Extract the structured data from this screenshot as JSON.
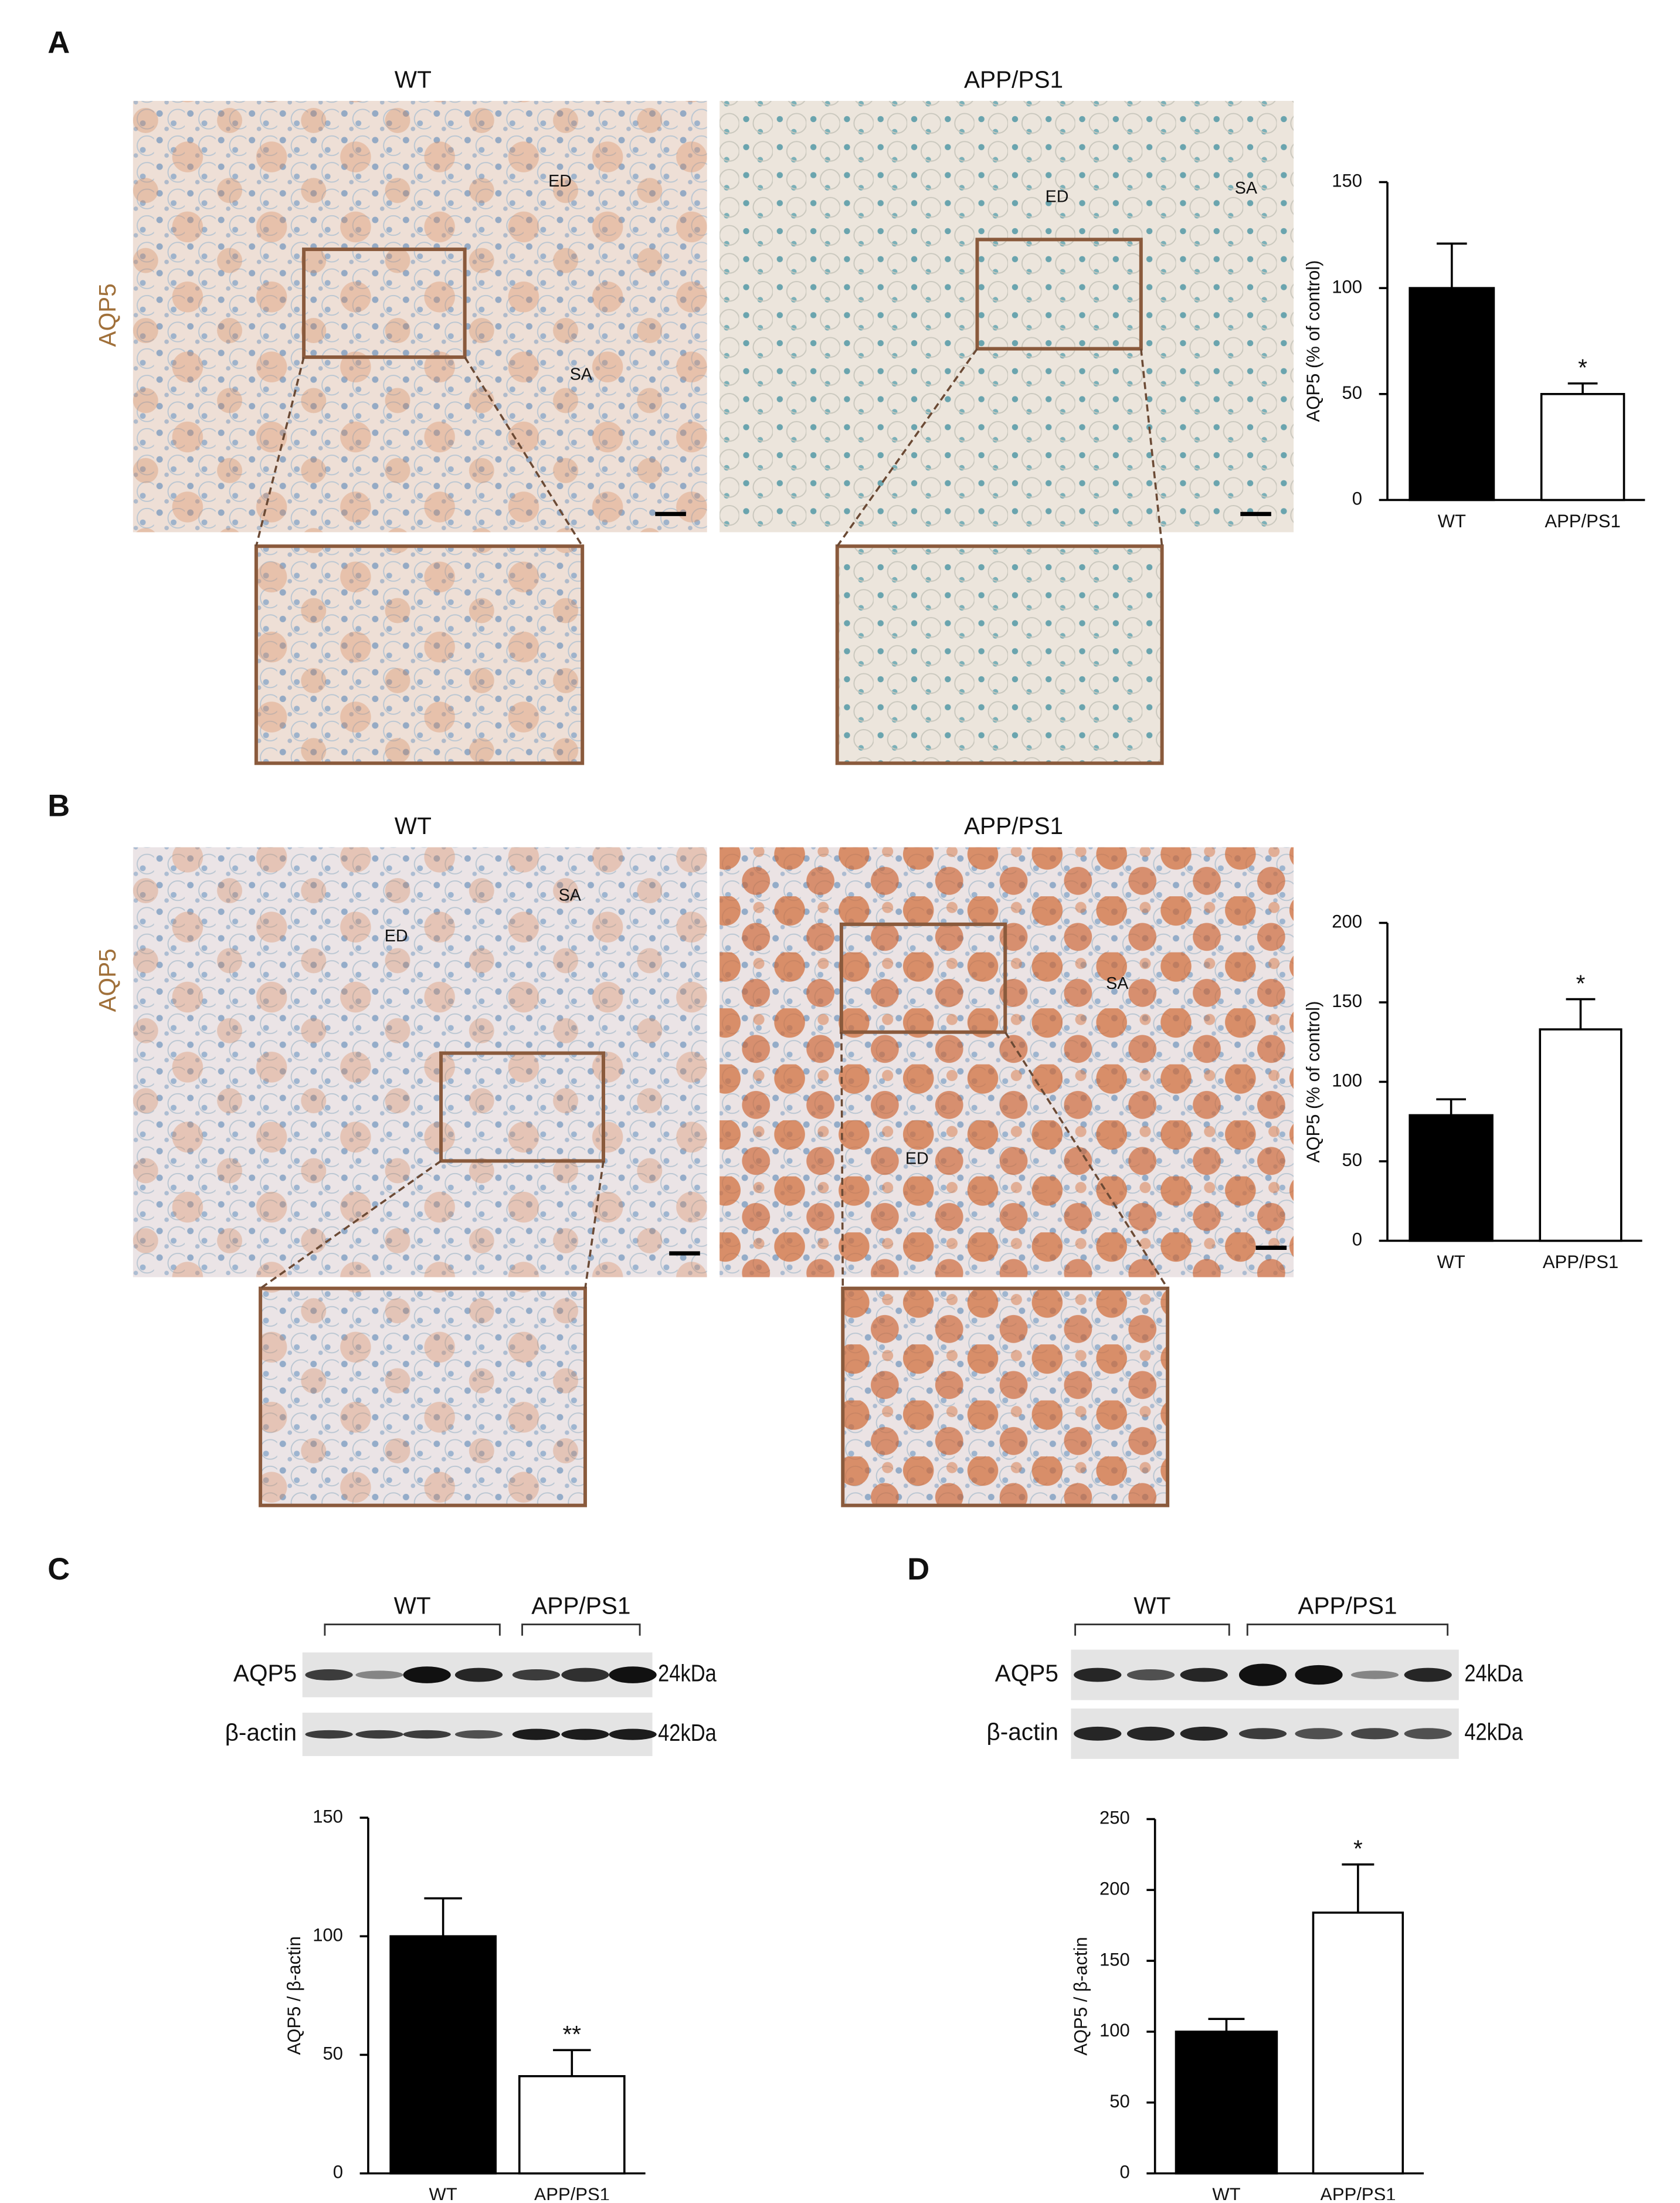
{
  "panel_labels": [
    "A",
    "B",
    "C",
    "D"
  ],
  "micrographs": [
    {
      "row_label": "AQP5",
      "images": [
        {
          "title": "WT",
          "tissue_labels": [
            "ED",
            "SA"
          ]
        },
        {
          "title": "APP/PS1",
          "tissue_labels": [
            "ED",
            "SA"
          ]
        }
      ]
    },
    {
      "row_label": "AQP5",
      "images": [
        {
          "title": "WT",
          "tissue_labels": [
            "ED",
            "SA"
          ]
        },
        {
          "title": "APP/PS1",
          "tissue_labels": [
            "SA",
            "ED"
          ]
        }
      ]
    }
  ],
  "blots": [
    {
      "groups": [
        "WT",
        "APP/PS1"
      ],
      "rows": [
        {
          "protein": "AQP5",
          "size": "24kDa"
        },
        {
          "protein": "β-actin",
          "size": "42kDa"
        }
      ]
    },
    {
      "groups": [
        "WT",
        "APP/PS1"
      ],
      "rows": [
        {
          "protein": "AQP5",
          "size": "24kDa"
        },
        {
          "protein": "β-actin",
          "size": "42kDa"
        }
      ]
    }
  ],
  "chart_data": [
    {
      "type": "bar",
      "y_label": "AQP5 (% of control)",
      "categories": [
        "WT",
        "APP/PS1"
      ],
      "values": [
        100,
        50
      ],
      "errors": [
        21,
        5
      ],
      "colors": [
        "#000000",
        "#ffffff"
      ],
      "significance": [
        null,
        "*"
      ],
      "ylim": [
        0,
        150
      ],
      "yticks": [
        0,
        50,
        100,
        150
      ]
    },
    {
      "type": "bar",
      "y_label": "AQP5 (% of control)",
      "categories": [
        "WT",
        "APP/PS1"
      ],
      "values": [
        79,
        133
      ],
      "errors": [
        10,
        19
      ],
      "colors": [
        "#000000",
        "#ffffff"
      ],
      "significance": [
        null,
        "*"
      ],
      "ylim": [
        0,
        200
      ],
      "yticks": [
        0,
        50,
        100,
        150,
        200
      ]
    },
    {
      "type": "bar",
      "y_label": "AQP5 / β-actin",
      "categories": [
        "WT",
        "APP/PS1"
      ],
      "values": [
        100,
        41
      ],
      "errors": [
        16,
        11
      ],
      "colors": [
        "#000000",
        "#ffffff"
      ],
      "significance": [
        null,
        "**"
      ],
      "ylim": [
        0,
        150
      ],
      "yticks": [
        0,
        50,
        100,
        150
      ]
    },
    {
      "type": "bar",
      "y_label": "AQP5 / β-actin",
      "categories": [
        "WT",
        "APP/PS1"
      ],
      "values": [
        100,
        184
      ],
      "errors": [
        9,
        34
      ],
      "colors": [
        "#000000",
        "#ffffff"
      ],
      "significance": [
        null,
        "*"
      ],
      "ylim": [
        0,
        250
      ],
      "yticks": [
        0,
        50,
        100,
        150,
        200,
        250
      ]
    }
  ]
}
